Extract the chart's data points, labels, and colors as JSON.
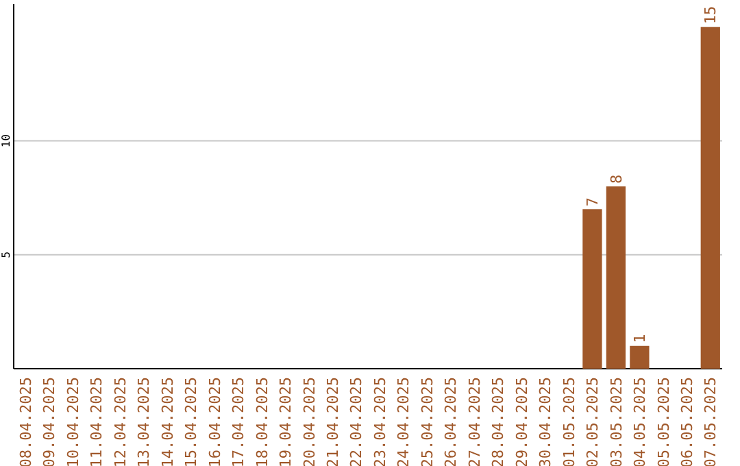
{
  "chart_data": {
    "type": "bar",
    "categories": [
      "08.04.2025",
      "09.04.2025",
      "10.04.2025",
      "11.04.2025",
      "12.04.2025",
      "13.04.2025",
      "14.04.2025",
      "15.04.2025",
      "16.04.2025",
      "17.04.2025",
      "18.04.2025",
      "19.04.2025",
      "20.04.2025",
      "21.04.2025",
      "22.04.2025",
      "23.04.2025",
      "24.04.2025",
      "25.04.2025",
      "26.04.2025",
      "27.04.2025",
      "28.04.2025",
      "29.04.2025",
      "30.04.2025",
      "01.05.2025",
      "02.05.2025",
      "03.05.2025",
      "04.05.2025",
      "05.05.2025",
      "06.05.2025",
      "07.05.2025"
    ],
    "values": [
      0,
      0,
      0,
      0,
      0,
      0,
      0,
      0,
      0,
      0,
      0,
      0,
      0,
      0,
      0,
      0,
      0,
      0,
      0,
      0,
      0,
      0,
      0,
      0,
      7,
      8,
      1,
      0,
      0,
      15
    ],
    "value_labels": [
      null,
      null,
      null,
      null,
      null,
      null,
      null,
      null,
      null,
      null,
      null,
      null,
      null,
      null,
      null,
      null,
      null,
      null,
      null,
      null,
      null,
      null,
      null,
      null,
      "7",
      "8",
      "1",
      null,
      null,
      "15"
    ],
    "color": "#a0582a",
    "ylim": [
      0,
      16
    ],
    "yticks": [
      5,
      10
    ],
    "grid": "y"
  }
}
